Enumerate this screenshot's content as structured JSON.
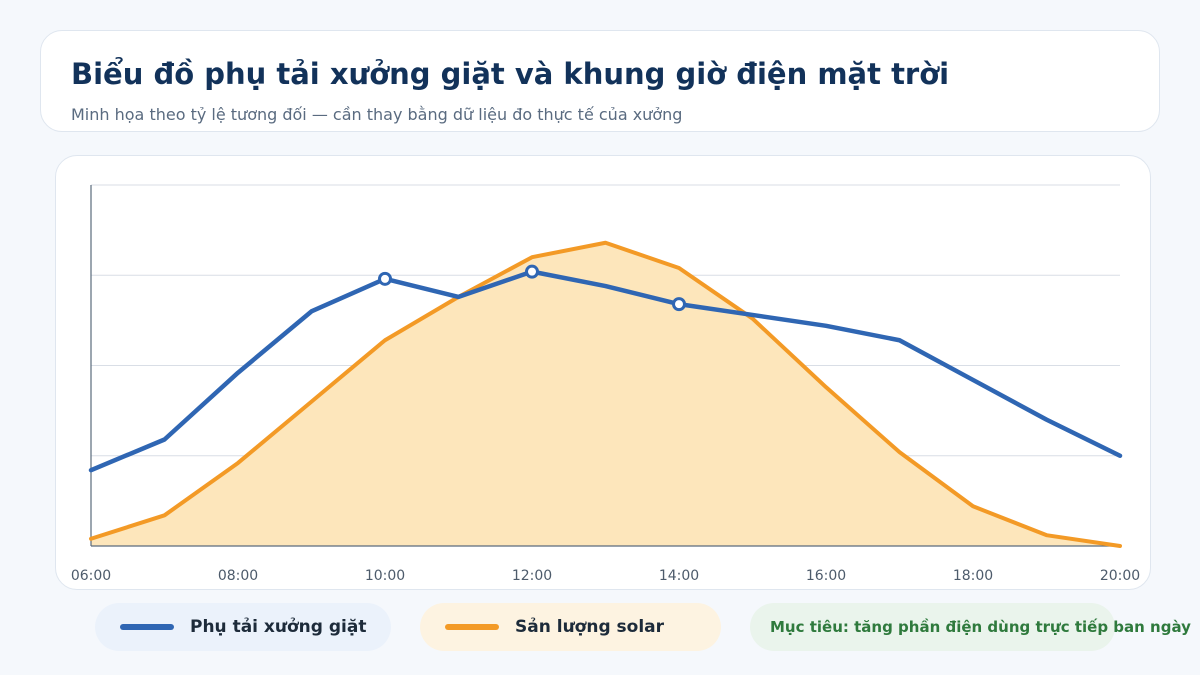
{
  "header": {
    "title": "Biểu đồ phụ tải xưởng giặt và khung giờ điện mặt trời",
    "subtitle": "Minh họa theo tỷ lệ tương đối — cần thay bằng dữ liệu đo thực tế của xưởng"
  },
  "legend": {
    "load_label": "Phụ tải xưởng giặt",
    "solar_label": "Sản lượng solar",
    "goal_text": "Mục tiêu: tăng phần điện dùng trực tiếp ban ngày"
  },
  "colors": {
    "load": "#2f66b3",
    "solar": "#f39a26",
    "solar_fill": "#fde6bb",
    "grid": "#d9dee6",
    "axis": "#5b6b7c"
  },
  "chart_data": {
    "type": "line",
    "title": "Biểu đồ phụ tải xưởng giặt và khung giờ điện mặt trời",
    "xlabel": "",
    "ylabel": "",
    "x": [
      6,
      7,
      8,
      9,
      10,
      11,
      12,
      13,
      14,
      15,
      16,
      17,
      18,
      19,
      20
    ],
    "x_ticks": [
      {
        "value": 6,
        "label": "06:00"
      },
      {
        "value": 8,
        "label": "08:00"
      },
      {
        "value": 10,
        "label": "10:00"
      },
      {
        "value": 12,
        "label": "12:00"
      },
      {
        "value": 14,
        "label": "14:00"
      },
      {
        "value": 16,
        "label": "16:00"
      },
      {
        "value": 18,
        "label": "18:00"
      },
      {
        "value": 20,
        "label": "20:00"
      }
    ],
    "xlim": [
      6,
      20
    ],
    "ylim": [
      0,
      100
    ],
    "y_gridlines": [
      0,
      25,
      50,
      75,
      100
    ],
    "y_tick_labels_shown": false,
    "grid": true,
    "legend_position": "bottom",
    "series": [
      {
        "name": "Sản lượng solar",
        "type": "area",
        "values": [
          2,
          8.5,
          23,
          40,
          57,
          69,
          80,
          84,
          77,
          63,
          44,
          26,
          11,
          3,
          0
        ]
      },
      {
        "name": "Phụ tải xưởng giặt",
        "type": "line",
        "values": [
          21,
          29.5,
          48,
          65,
          74,
          69,
          76,
          72,
          67,
          64,
          61,
          57,
          46,
          35,
          25
        ],
        "markers_at_x": [
          10,
          12,
          14
        ]
      }
    ]
  }
}
